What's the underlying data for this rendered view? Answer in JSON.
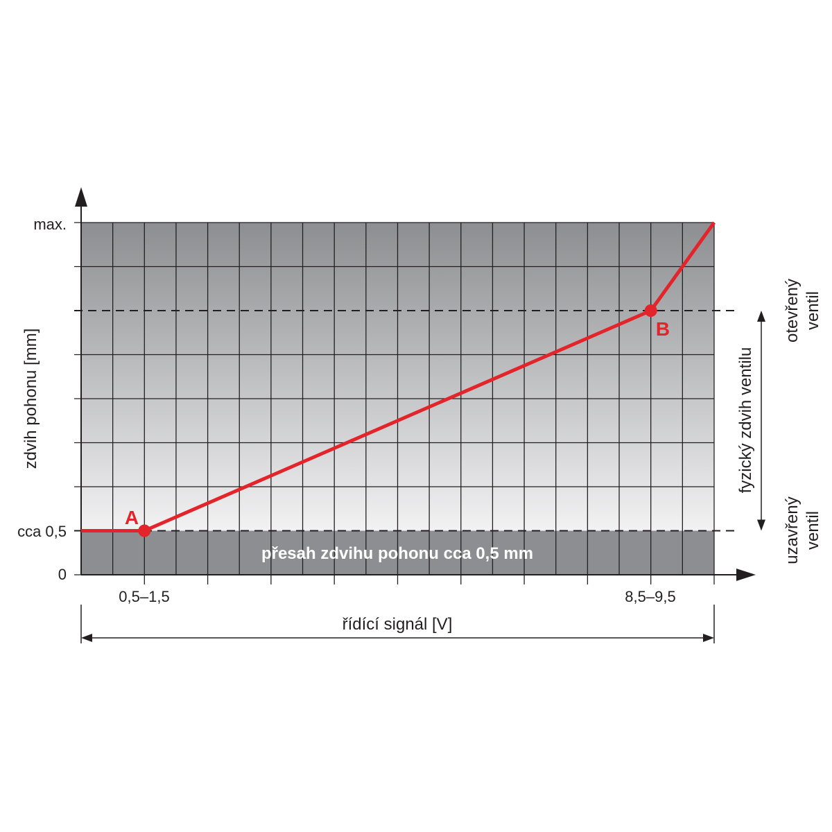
{
  "chart_data": {
    "type": "line",
    "title": "",
    "xlabel": "řídící signál [V]",
    "ylabel": "zdvih pohonu [mm]",
    "x_ticks_labels": [
      "0,5–1,5",
      "8,5–9,5"
    ],
    "y_ticks_labels": [
      "max.",
      "cca 0,5",
      "0"
    ],
    "x_grid_cells": 20,
    "y_grid_cells": 8,
    "ylim": [
      0,
      8
    ],
    "grid": true,
    "series": [
      {
        "points": [
          {
            "x": 0,
            "y": 1
          },
          {
            "x": 2,
            "y": 1
          },
          {
            "x": 18,
            "y": 6
          },
          {
            "x": 20,
            "y": 8
          }
        ],
        "color": "#e3242b"
      }
    ],
    "markers": [
      {
        "label": "A",
        "x": 2,
        "y": 1,
        "x_value": "0,5–1,5",
        "y_value": "cca 0,5"
      },
      {
        "label": "B",
        "x": 18,
        "y": 6,
        "x_value": "8,5–9,5"
      }
    ],
    "annotations": {
      "overlap_band": "přesah zdvihu pohonu cca 0,5 mm",
      "stroke_range": "fyzický zdvih ventilu",
      "open_valve": [
        "otevřený",
        "ventil"
      ],
      "closed_valve": [
        "uzavřený",
        "ventil"
      ]
    },
    "colors": {
      "curve": "#e3242b",
      "grid_line": "#231f20",
      "band_dark": "#8d8e91",
      "gradient_light": "#f2f2f3"
    }
  }
}
